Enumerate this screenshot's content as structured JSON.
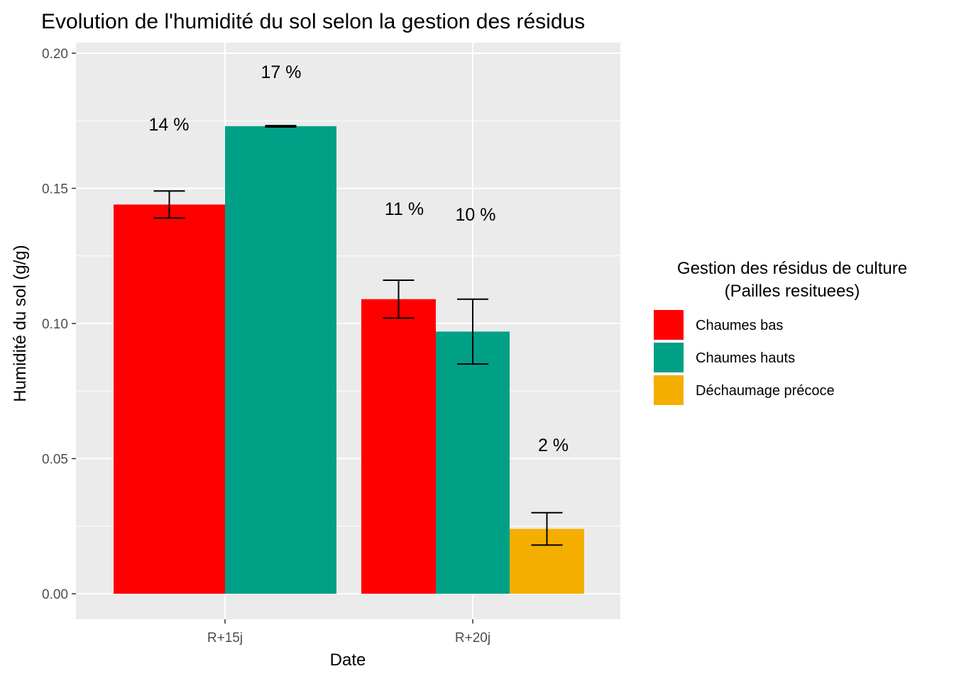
{
  "chart_data": {
    "type": "bar",
    "title": "Evolution de l'humidité du sol selon la gestion des résidus",
    "xlabel": "Date",
    "ylabel": "Humidité du sol (g/g)",
    "ylim": [
      0,
      0.2
    ],
    "yticks": [
      "0.00",
      "0.05",
      "0.10",
      "0.15",
      "0.20"
    ],
    "categories": [
      "R+15j",
      "R+20j"
    ],
    "legend": {
      "title_line1": "Gestion des résidus de culture",
      "title_line2": "(Pailles resituees)",
      "position": "right"
    },
    "series": [
      {
        "name": "Chaumes bas",
        "color": "#FF0000",
        "values": [
          0.144,
          0.109
        ],
        "error_low": [
          0.139,
          0.102
        ],
        "error_high": [
          0.149,
          0.116
        ],
        "labels": [
          "14 %",
          "11 %"
        ]
      },
      {
        "name": "Chaumes hauts",
        "color": "#00A087",
        "values": [
          0.173,
          0.097
        ],
        "error_low": [
          0.1727,
          0.085
        ],
        "error_high": [
          0.1732,
          0.109
        ],
        "labels": [
          "17 %",
          "10 %"
        ]
      },
      {
        "name": "Déchaumage précoce",
        "color": "#F4AE00",
        "values": [
          null,
          0.024
        ],
        "error_low": [
          null,
          0.018
        ],
        "error_high": [
          null,
          0.03
        ],
        "labels": [
          null,
          "2 %"
        ]
      }
    ],
    "grid": true,
    "background": "#EBEBEB"
  }
}
